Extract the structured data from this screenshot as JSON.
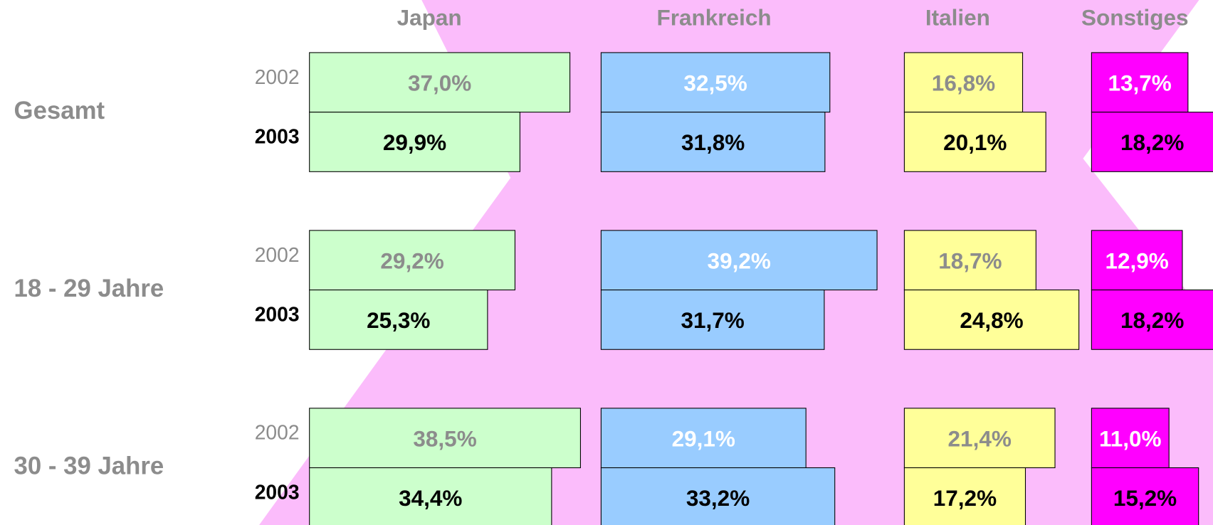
{
  "chart_data": {
    "type": "bar",
    "categories": [
      "Gesamt",
      "18 - 29 Jahre",
      "30 - 39 Jahre"
    ],
    "years": [
      "2002",
      "2003"
    ],
    "series": [
      {
        "name": "Japan",
        "color": "#ccffcc",
        "values": [
          [
            37.0,
            29.9
          ],
          [
            29.2,
            25.3
          ],
          [
            38.5,
            34.4
          ]
        ],
        "value_labels": [
          [
            "37,0%",
            "29,9%"
          ],
          [
            "29,2%",
            "25,3%"
          ],
          [
            "38,5%",
            "34,4%"
          ]
        ]
      },
      {
        "name": "Frankreich",
        "color": "#99ccff",
        "values": [
          [
            32.5,
            31.8
          ],
          [
            39.2,
            31.7
          ],
          [
            29.1,
            33.2
          ]
        ],
        "value_labels": [
          [
            "32,5%",
            "31,8%"
          ],
          [
            "39,2%",
            "31,7%"
          ],
          [
            "29,1%",
            "33,2%"
          ]
        ]
      },
      {
        "name": "Italien",
        "color": "#ffff99",
        "values": [
          [
            16.8,
            20.1
          ],
          [
            18.7,
            24.8
          ],
          [
            21.4,
            17.2
          ]
        ],
        "value_labels": [
          [
            "16,8%",
            "20,1%"
          ],
          [
            "18,7%",
            "24,8%"
          ],
          [
            "21,4%",
            "17,2%"
          ]
        ]
      },
      {
        "name": "Sonstiges",
        "color": "#ff00ff",
        "values": [
          [
            13.7,
            18.2
          ],
          [
            12.9,
            18.2
          ],
          [
            11.0,
            15.2
          ]
        ],
        "value_labels": [
          [
            "13,7%",
            "18,2%"
          ],
          [
            "12,9%",
            "18,2%"
          ],
          [
            "11,0%",
            "15,2%"
          ]
        ]
      }
    ]
  }
}
